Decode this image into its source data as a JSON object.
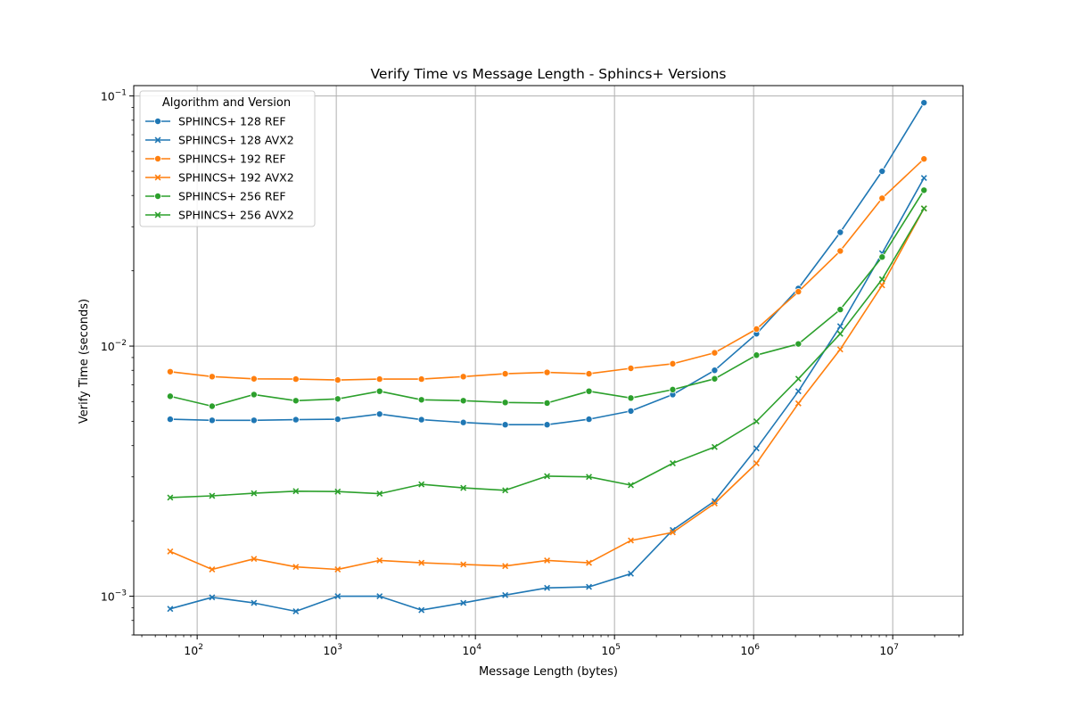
{
  "chart_data": {
    "type": "line",
    "title": "Verify Time vs Message Length - Sphincs+ Versions",
    "xlabel": "Message Length (bytes)",
    "ylabel": "Verify Time (seconds)",
    "xscale": "log",
    "yscale": "log",
    "xlim": [
      35,
      32000000
    ],
    "ylim": [
      0.0007,
      0.11
    ],
    "grid": true,
    "legend": {
      "title": "Algorithm and Version",
      "placement": "top-left"
    },
    "x_ticks": [
      {
        "base": "10",
        "exp": "2",
        "value": 100
      },
      {
        "base": "10",
        "exp": "3",
        "value": 1000
      },
      {
        "base": "10",
        "exp": "4",
        "value": 10000
      },
      {
        "base": "10",
        "exp": "5",
        "value": 100000
      },
      {
        "base": "10",
        "exp": "6",
        "value": 1000000
      },
      {
        "base": "10",
        "exp": "7",
        "value": 10000000
      }
    ],
    "y_ticks": [
      {
        "base": "10",
        "exp": "−3",
        "value": 0.001
      },
      {
        "base": "10",
        "exp": "−2",
        "value": 0.01
      },
      {
        "base": "10",
        "exp": "−1",
        "value": 0.1
      }
    ],
    "x": [
      64,
      128,
      256,
      512,
      1024,
      2048,
      4096,
      8192,
      16384,
      32768,
      65536,
      131072,
      262144,
      524288,
      1048576,
      2097152,
      4194304,
      8388608,
      16777216
    ],
    "series": [
      {
        "name": "SPHINCS+ 128 REF",
        "color": "#1f77b4",
        "marker": "circle",
        "values": [
          0.0051,
          0.00505,
          0.00505,
          0.00508,
          0.0051,
          0.00535,
          0.00508,
          0.00495,
          0.00485,
          0.00485,
          0.0051,
          0.0055,
          0.0064,
          0.008,
          0.0112,
          0.017,
          0.0285,
          0.05,
          0.094
        ]
      },
      {
        "name": "SPHINCS+ 128 AVX2",
        "color": "#1f77b4",
        "marker": "x",
        "values": [
          0.00089,
          0.00099,
          0.00094,
          0.00087,
          0.001,
          0.001,
          0.00088,
          0.00094,
          0.00101,
          0.00108,
          0.00109,
          0.00123,
          0.00184,
          0.0024,
          0.0039,
          0.0066,
          0.012,
          0.0235,
          0.047
        ]
      },
      {
        "name": "SPHINCS+ 192 REF",
        "color": "#ff7f0e",
        "marker": "circle",
        "values": [
          0.0079,
          0.00755,
          0.0074,
          0.00738,
          0.00732,
          0.00738,
          0.00738,
          0.00755,
          0.00775,
          0.00785,
          0.00775,
          0.00815,
          0.0085,
          0.0094,
          0.0117,
          0.0165,
          0.024,
          0.039,
          0.056
        ]
      },
      {
        "name": "SPHINCS+ 192 AVX2",
        "color": "#ff7f0e",
        "marker": "x",
        "values": [
          0.00151,
          0.00128,
          0.00141,
          0.00131,
          0.00128,
          0.00139,
          0.00136,
          0.00134,
          0.00132,
          0.00139,
          0.00136,
          0.00167,
          0.0018,
          0.00235,
          0.0034,
          0.0059,
          0.0097,
          0.0175,
          0.0355
        ]
      },
      {
        "name": "SPHINCS+ 256 REF",
        "color": "#2ca02c",
        "marker": "circle",
        "values": [
          0.0063,
          0.00575,
          0.0064,
          0.00605,
          0.00615,
          0.0066,
          0.0061,
          0.00605,
          0.00595,
          0.00592,
          0.0066,
          0.0062,
          0.0067,
          0.0074,
          0.0092,
          0.0102,
          0.014,
          0.0227,
          0.042
        ]
      },
      {
        "name": "SPHINCS+ 256 AVX2",
        "color": "#2ca02c",
        "marker": "x",
        "values": [
          0.00248,
          0.00252,
          0.00258,
          0.00263,
          0.00262,
          0.00257,
          0.0028,
          0.00271,
          0.00265,
          0.00302,
          0.003,
          0.00278,
          0.0034,
          0.00395,
          0.005,
          0.0074,
          0.0112,
          0.0185,
          0.0355
        ]
      }
    ]
  }
}
